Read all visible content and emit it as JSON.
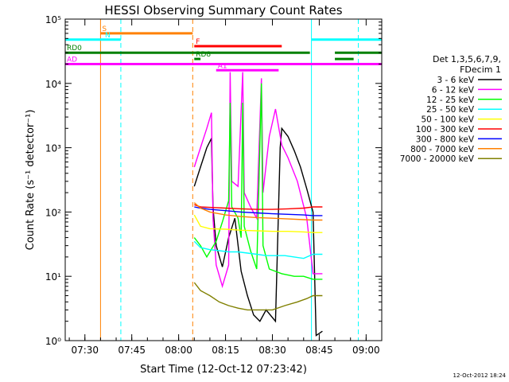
{
  "chart_data": {
    "type": "line",
    "title": "HESSI Observing Summary Count Rates",
    "xlabel": "Start Time (12-Oct-12 07:23:42)",
    "ylabel": "Count Rate (s⁻¹ detector⁻¹)",
    "y_scale": "log",
    "xlim": [
      "07:23:42",
      "09:05:00"
    ],
    "ylim": [
      1,
      100000
    ],
    "x_ticks": [
      "07:30",
      "07:45",
      "08:00",
      "08:15",
      "08:30",
      "08:45",
      "09:00"
    ],
    "y_ticks": [
      "10⁰",
      "10¹",
      "10²",
      "10³",
      "10⁴",
      "10⁵"
    ],
    "legend_title": [
      "Det 1,3,5,6,7,9,",
      "FDecim 1"
    ],
    "legend_position": "right",
    "footer": "12-Oct-2012 18:24",
    "series": [
      {
        "name": "3 - 6 keV",
        "color": "#000000",
        "points": [
          [
            "08:05:00",
            250
          ],
          [
            "08:07:00",
            500
          ],
          [
            "08:09:00",
            1000
          ],
          [
            "08:10:30",
            1400
          ],
          [
            "08:11:00",
            120
          ],
          [
            "08:12:00",
            30
          ],
          [
            "08:14:00",
            14
          ],
          [
            "08:16:00",
            40
          ],
          [
            "08:18:00",
            80
          ],
          [
            "08:20:00",
            12
          ],
          [
            "08:22:00",
            5
          ],
          [
            "08:24:00",
            2.5
          ],
          [
            "08:26:00",
            2
          ],
          [
            "08:28:00",
            3
          ],
          [
            "08:31:00",
            2
          ],
          [
            "08:32:30",
            1000
          ],
          [
            "08:33:00",
            2000
          ],
          [
            "08:35:00",
            1500
          ],
          [
            "08:37:00",
            900
          ],
          [
            "08:39:00",
            500
          ],
          [
            "08:41:00",
            230
          ],
          [
            "08:43:00",
            100
          ],
          [
            "08:44:00",
            1.2
          ],
          [
            "08:46:00",
            1.4
          ]
        ]
      },
      {
        "name": "6 - 12 keV",
        "color": "#ff00ff",
        "points": [
          [
            "08:05:00",
            500
          ],
          [
            "08:07:00",
            1000
          ],
          [
            "08:09:00",
            2000
          ],
          [
            "08:10:30",
            3500
          ],
          [
            "08:11:00",
            80
          ],
          [
            "08:12:00",
            15
          ],
          [
            "08:14:00",
            7
          ],
          [
            "08:16:00",
            15
          ],
          [
            "08:16:30",
            15000
          ],
          [
            "08:17:00",
            300
          ],
          [
            "08:19:00",
            250
          ],
          [
            "08:20:30",
            15000
          ],
          [
            "08:21:00",
            200
          ],
          [
            "08:23:00",
            120
          ],
          [
            "08:25:00",
            80
          ],
          [
            "08:26:30",
            12000
          ],
          [
            "08:27:00",
            200
          ],
          [
            "08:29:00",
            1500
          ],
          [
            "08:31:00",
            4000
          ],
          [
            "08:33:00",
            1100
          ],
          [
            "08:35:00",
            700
          ],
          [
            "08:38:00",
            300
          ],
          [
            "08:41:00",
            80
          ],
          [
            "08:43:00",
            11
          ],
          [
            "08:46:00",
            11
          ]
        ]
      },
      {
        "name": "12 - 25 keV",
        "color": "#00ff00",
        "points": [
          [
            "08:05:00",
            40
          ],
          [
            "08:07:00",
            30
          ],
          [
            "08:09:00",
            20
          ],
          [
            "08:12:00",
            35
          ],
          [
            "08:14:00",
            70
          ],
          [
            "08:16:00",
            150
          ],
          [
            "08:16:30",
            5000
          ],
          [
            "08:17:00",
            120
          ],
          [
            "08:19:00",
            80
          ],
          [
            "08:20:00",
            40
          ],
          [
            "08:20:30",
            5000
          ],
          [
            "08:21:00",
            60
          ],
          [
            "08:23:00",
            25
          ],
          [
            "08:25:00",
            13
          ],
          [
            "08:26:30",
            10000
          ],
          [
            "08:27:00",
            30
          ],
          [
            "08:29:00",
            13
          ],
          [
            "08:33:00",
            11
          ],
          [
            "08:37:00",
            10
          ],
          [
            "08:40:00",
            10
          ],
          [
            "08:43:00",
            9
          ],
          [
            "08:46:00",
            9
          ]
        ]
      },
      {
        "name": "25 - 50 keV",
        "color": "#00ffff",
        "points": [
          [
            "08:05:00",
            35
          ],
          [
            "08:07:00",
            28
          ],
          [
            "08:10:00",
            26
          ],
          [
            "08:13:00",
            25
          ],
          [
            "08:16:00",
            24
          ],
          [
            "08:19:00",
            24
          ],
          [
            "08:22:00",
            23
          ],
          [
            "08:25:00",
            22
          ],
          [
            "08:28:00",
            21
          ],
          [
            "08:31:00",
            21
          ],
          [
            "08:34:00",
            21
          ],
          [
            "08:37:00",
            20
          ],
          [
            "08:40:00",
            19
          ],
          [
            "08:43:00",
            22
          ],
          [
            "08:46:00",
            22
          ]
        ]
      },
      {
        "name": "50 - 100 keV",
        "color": "#ffff00",
        "points": [
          [
            "08:05:00",
            90
          ],
          [
            "08:07:00",
            60
          ],
          [
            "08:10:00",
            55
          ],
          [
            "08:15:00",
            54
          ],
          [
            "08:20:00",
            52
          ],
          [
            "08:25:00",
            51
          ],
          [
            "08:30:00",
            50
          ],
          [
            "08:35:00",
            50
          ],
          [
            "08:40:00",
            49
          ],
          [
            "08:43:00",
            48
          ],
          [
            "08:46:00",
            48
          ]
        ]
      },
      {
        "name": "100 - 300 keV",
        "color": "#ff0000",
        "points": [
          [
            "08:05:00",
            130
          ],
          [
            "08:07:00",
            120
          ],
          [
            "08:10:00",
            118
          ],
          [
            "08:15:00",
            115
          ],
          [
            "08:20:00",
            112
          ],
          [
            "08:25:00",
            110
          ],
          [
            "08:30:00",
            110
          ],
          [
            "08:35:00",
            112
          ],
          [
            "08:40:00",
            115
          ],
          [
            "08:43:00",
            120
          ],
          [
            "08:46:00",
            120
          ]
        ]
      },
      {
        "name": "300 - 800 keV",
        "color": "#0000ff",
        "points": [
          [
            "08:05:00",
            120
          ],
          [
            "08:07:00",
            115
          ],
          [
            "08:10:00",
            110
          ],
          [
            "08:15:00",
            105
          ],
          [
            "08:20:00",
            100
          ],
          [
            "08:25:00",
            97
          ],
          [
            "08:30:00",
            94
          ],
          [
            "08:35:00",
            92
          ],
          [
            "08:40:00",
            90
          ],
          [
            "08:43:00",
            88
          ],
          [
            "08:46:00",
            88
          ]
        ]
      },
      {
        "name": "800 - 7000 keV",
        "color": "#ff8000",
        "points": [
          [
            "08:05:00",
            140
          ],
          [
            "08:07:00",
            115
          ],
          [
            "08:10:00",
            100
          ],
          [
            "08:15:00",
            90
          ],
          [
            "08:20:00",
            85
          ],
          [
            "08:25:00",
            82
          ],
          [
            "08:30:00",
            80
          ],
          [
            "08:35:00",
            78
          ],
          [
            "08:40:00",
            76
          ],
          [
            "08:43:00",
            75
          ],
          [
            "08:46:00",
            75
          ]
        ]
      },
      {
        "name": "7000 - 20000 keV",
        "color": "#808000",
        "points": [
          [
            "08:05:00",
            8
          ],
          [
            "08:07:00",
            6
          ],
          [
            "08:10:00",
            5
          ],
          [
            "08:13:00",
            4
          ],
          [
            "08:16:00",
            3.5
          ],
          [
            "08:19:00",
            3.2
          ],
          [
            "08:22:00",
            3
          ],
          [
            "08:26:00",
            3
          ],
          [
            "08:30:00",
            3
          ],
          [
            "08:34:00",
            3.5
          ],
          [
            "08:38:00",
            4
          ],
          [
            "08:41:00",
            4.5
          ],
          [
            "08:43:00",
            5
          ],
          [
            "08:46:00",
            5
          ]
        ]
      }
    ],
    "vertical_lines": [
      {
        "x": "07:35:00",
        "color": "#ff8000",
        "style": "solid"
      },
      {
        "x": "07:41:30",
        "color": "#00ffff",
        "style": "dashed"
      },
      {
        "x": "08:04:30",
        "color": "#ff8000",
        "style": "dashed"
      },
      {
        "x": "08:42:30",
        "color": "#00ffff",
        "style": "solid"
      },
      {
        "x": "08:57:30",
        "color": "#00ffff",
        "style": "dashed"
      }
    ],
    "flag_bars": [
      {
        "label": "S",
        "color": "#ff8000",
        "y": 60000,
        "spans": [
          [
            "07:35:00",
            "08:04:30"
          ]
        ]
      },
      {
        "label": "N",
        "color": "#00ffff",
        "y": 48000,
        "spans": [
          [
            "07:23:42",
            "07:41:30"
          ],
          [
            "08:42:30",
            "09:05:00"
          ]
        ]
      },
      {
        "label": "F",
        "color": "#ff0000",
        "y": 38000,
        "spans": [
          [
            "08:05:00",
            "08:33:00"
          ]
        ]
      },
      {
        "label": "RD0",
        "color": "#008000",
        "y": 30000,
        "spans": [
          [
            "07:23:42",
            "08:42:00"
          ],
          [
            "08:50:00",
            "09:05:00"
          ]
        ]
      },
      {
        "label": "RD8",
        "color": "#008000",
        "y": 24000,
        "spans": [
          [
            "08:05:00",
            "08:07:00"
          ],
          [
            "08:50:00",
            "08:56:00"
          ]
        ]
      },
      {
        "label": "AD",
        "color": "#ff00ff",
        "y": 20000,
        "spans": [
          [
            "07:23:42",
            "09:05:00"
          ]
        ]
      },
      {
        "label": "A1",
        "color": "#ff00ff",
        "y": 16000,
        "spans": [
          [
            "08:12:00",
            "08:32:00"
          ]
        ]
      }
    ]
  }
}
